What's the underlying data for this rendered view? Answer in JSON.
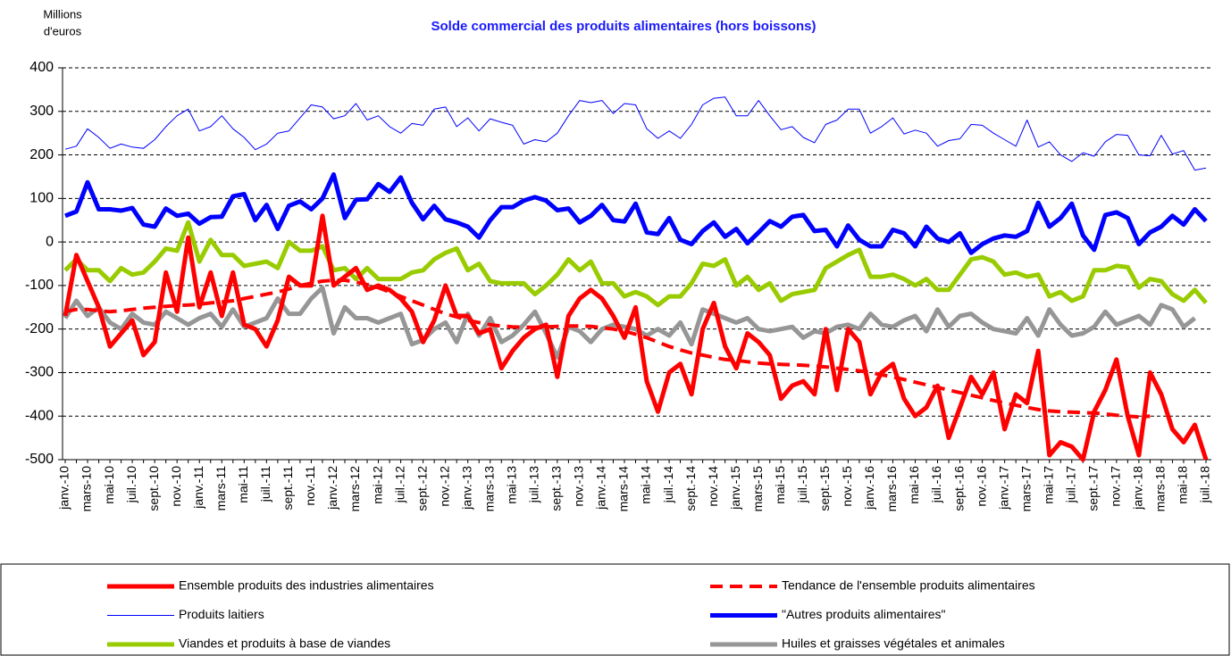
{
  "chart_data": {
    "type": "line",
    "title": "Solde commercial des produits alimentaires (hors boissons)",
    "y_label": [
      "Millions",
      "d'euros"
    ],
    "categories": [
      "janv.-10",
      null,
      "mars-10",
      null,
      "mai-10",
      null,
      "juil.-10",
      null,
      "sept.-10",
      null,
      "nov.-10",
      null,
      "janv.-11",
      null,
      "mars-11",
      null,
      "mai-11",
      null,
      "juil.-11",
      null,
      "sept.-11",
      null,
      "nov.-11",
      null,
      "janv.-12",
      null,
      "mars-12",
      null,
      "mai-12",
      null,
      "juil.-12",
      null,
      "sept.-12",
      null,
      "nov.-12",
      null,
      "janv.-13",
      null,
      "mars-13",
      null,
      "mai-13",
      null,
      "juil.-13",
      null,
      "sept.-13",
      null,
      "nov.-13",
      null,
      "janv.-14",
      null,
      "mars-14",
      null,
      "mai-14",
      null,
      "juil.-14",
      null,
      "sept.-14",
      null,
      "nov.-14",
      null,
      "janv.-15",
      null,
      "mars-15",
      null,
      "mai-15",
      null,
      "juil.-15",
      null,
      "sept.-15",
      null,
      "nov.-15",
      null,
      "janv.-16",
      null,
      "mars-16",
      null,
      "mai-16",
      null,
      "juil.-16",
      null,
      "sept.-16",
      null,
      "nov.-16",
      null,
      "janv.-17",
      null,
      "mars-17",
      null,
      "mai-17",
      null,
      "juil.-17",
      null,
      "sept.-17",
      null,
      "nov.-17",
      null,
      "janv.-18",
      null,
      "mars-18",
      null,
      "mai-18",
      null,
      "juil.-18"
    ],
    "ylim": [
      -500,
      400
    ],
    "yticks": [
      -500,
      -400,
      -300,
      -200,
      -100,
      0,
      100,
      200,
      300,
      400
    ],
    "grid": true,
    "series": [
      {
        "name": "Ensemble produits des industries alimentaires",
        "color": "#ff0000",
        "line_width": 5,
        "dashed": false,
        "values": [
          -170,
          -30,
          -90,
          -150,
          -240,
          -210,
          -180,
          -260,
          -230,
          -70,
          -160,
          10,
          -150,
          -70,
          -170,
          -70,
          -190,
          -200,
          -240,
          -180,
          -80,
          -100,
          -100,
          60,
          -100,
          -80,
          -60,
          -110,
          -100,
          -110,
          -130,
          -160,
          -230,
          -180,
          -100,
          -170,
          -170,
          -210,
          -200,
          -290,
          -250,
          -220,
          -200,
          -190,
          -310,
          -170,
          -130,
          -110,
          -130,
          -170,
          -220,
          -150,
          -320,
          -390,
          -300,
          -280,
          -350,
          -200,
          -140,
          -240,
          -290,
          -210,
          -230,
          -260,
          -360,
          -330,
          -320,
          -350,
          -200,
          -340,
          -200,
          -230,
          -350,
          -300,
          -280,
          -360,
          -400,
          -380,
          -330,
          -450,
          -380,
          -310,
          -350,
          -300,
          -430,
          -350,
          -370,
          -250,
          -490,
          -460,
          -470,
          -500,
          -390,
          -340,
          -270,
          -400,
          -490,
          -300,
          -350,
          -430,
          -460,
          -420,
          -500
        ]
      },
      {
        "name": "Tendance de l'ensemble produits alimentaires",
        "color": "#ff0000",
        "line_width": 4,
        "dashed": true,
        "values": [
          -160,
          -155,
          -155,
          -158,
          -160,
          -158,
          -155,
          -152,
          -150,
          -148,
          -146,
          -145,
          -143,
          -140,
          -138,
          -135,
          -130,
          -125,
          -120,
          -115,
          -108,
          -100,
          -95,
          -90,
          -88,
          -88,
          -92,
          -98,
          -105,
          -115,
          -125,
          -135,
          -145,
          -155,
          -165,
          -172,
          -180,
          -185,
          -190,
          -193,
          -195,
          -196,
          -196,
          -195,
          -194,
          -193,
          -193,
          -194,
          -197,
          -200,
          -205,
          -212,
          -220,
          -230,
          -240,
          -248,
          -255,
          -260,
          -265,
          -270,
          -272,
          -275,
          -278,
          -280,
          -281,
          -282,
          -283,
          -285,
          -287,
          -290,
          -293,
          -296,
          -300,
          -305,
          -310,
          -316,
          -322,
          -328,
          -334,
          -340,
          -346,
          -352,
          -358,
          -364,
          -370,
          -375,
          -380,
          -385,
          -388,
          -390,
          -391,
          -392,
          -393,
          -395,
          -398,
          -400,
          -402,
          -400,
          null,
          null,
          null,
          null,
          null
        ]
      },
      {
        "name": "Produits laitiers",
        "color": "#0000ff",
        "line_width": 1,
        "dashed": false,
        "values": [
          213,
          220,
          260,
          240,
          215,
          225,
          218,
          215,
          235,
          265,
          290,
          305,
          255,
          265,
          290,
          260,
          240,
          212,
          225,
          250,
          255,
          285,
          315,
          310,
          283,
          290,
          318,
          280,
          290,
          265,
          250,
          272,
          268,
          305,
          310,
          265,
          285,
          255,
          283,
          275,
          268,
          225,
          235,
          230,
          250,
          290,
          325,
          320,
          325,
          295,
          318,
          315,
          260,
          238,
          255,
          238,
          270,
          315,
          330,
          333,
          290,
          290,
          325,
          290,
          258,
          265,
          240,
          228,
          270,
          280,
          305,
          305,
          250,
          265,
          285,
          248,
          257,
          250,
          220,
          233,
          237,
          270,
          268,
          250,
          235,
          220,
          280,
          218,
          230,
          200,
          185,
          205,
          197,
          230,
          247,
          245,
          200,
          198,
          245,
          202,
          210,
          165,
          170
        ]
      },
      {
        "name": "\"Autres produits alimentaires\"",
        "color": "#0000ff",
        "line_width": 5,
        "dashed": false,
        "values": [
          60,
          70,
          137,
          75,
          75,
          72,
          78,
          40,
          35,
          77,
          60,
          65,
          42,
          57,
          58,
          105,
          110,
          50,
          85,
          30,
          83,
          93,
          75,
          100,
          155,
          55,
          97,
          98,
          133,
          115,
          148,
          90,
          52,
          83,
          52,
          45,
          35,
          10,
          50,
          80,
          80,
          95,
          103,
          95,
          73,
          77,
          45,
          60,
          85,
          50,
          47,
          88,
          22,
          18,
          55,
          5,
          -5,
          25,
          45,
          12,
          30,
          -3,
          22,
          48,
          35,
          58,
          62,
          25,
          28,
          -10,
          38,
          5,
          -10,
          -10,
          28,
          20,
          -10,
          35,
          8,
          0,
          20,
          -25,
          -5,
          8,
          15,
          12,
          25,
          90,
          35,
          55,
          88,
          15,
          -18,
          62,
          68,
          55,
          -5,
          22,
          35,
          60,
          40,
          75,
          48
        ]
      },
      {
        "name": "Viandes et produits à base de viandes",
        "color": "#99cc00",
        "line_width": 5,
        "dashed": false,
        "values": [
          -65,
          -40,
          -65,
          -65,
          -90,
          -60,
          -75,
          -70,
          -45,
          -15,
          -20,
          45,
          -45,
          5,
          -30,
          -30,
          -55,
          -50,
          -45,
          -60,
          0,
          -20,
          -20,
          -10,
          -65,
          -60,
          -85,
          -60,
          -85,
          -85,
          -85,
          -70,
          -65,
          -40,
          -25,
          -15,
          -65,
          -50,
          -90,
          -95,
          -95,
          -95,
          -120,
          -100,
          -75,
          -40,
          -65,
          -45,
          -95,
          -95,
          -125,
          -115,
          -125,
          -145,
          -125,
          -125,
          -95,
          -50,
          -55,
          -40,
          -100,
          -80,
          -110,
          -95,
          -135,
          -120,
          -115,
          -110,
          -60,
          -45,
          -30,
          -18,
          -80,
          -80,
          -75,
          -85,
          -100,
          -85,
          -110,
          -110,
          -75,
          -40,
          -35,
          -45,
          -75,
          -70,
          -80,
          -75,
          -125,
          -115,
          -135,
          -125,
          -65,
          -65,
          -55,
          -58,
          -105,
          -85,
          -90,
          -120,
          -135,
          -110,
          -140
        ]
      },
      {
        "name": "Huiles et graisses végétales et animales",
        "color": "#969696",
        "line_width": 5,
        "dashed": false,
        "values": [
          -175,
          -135,
          -170,
          -150,
          -185,
          -200,
          -165,
          -185,
          -190,
          -160,
          -175,
          -190,
          -175,
          -165,
          -195,
          -155,
          -195,
          -185,
          -175,
          -130,
          -165,
          -165,
          -130,
          -105,
          -210,
          -150,
          -175,
          -175,
          -185,
          -175,
          -165,
          -235,
          -225,
          -200,
          -185,
          -230,
          -165,
          -215,
          -175,
          -230,
          -215,
          -190,
          -160,
          -210,
          -265,
          -195,
          -205,
          -230,
          -200,
          -190,
          -195,
          -200,
          -215,
          -200,
          -215,
          -185,
          -235,
          -155,
          -165,
          -175,
          -185,
          -175,
          -200,
          -205,
          -200,
          -195,
          -220,
          -205,
          -210,
          -195,
          -190,
          -200,
          -165,
          -190,
          -195,
          -180,
          -170,
          -205,
          -155,
          -195,
          -170,
          -165,
          -185,
          -200,
          -205,
          -210,
          -175,
          -215,
          -155,
          -190,
          -215,
          -210,
          -195,
          -160,
          -190,
          -180,
          -170,
          -190,
          -145,
          -155,
          -195,
          -175,
          null
        ]
      }
    ]
  }
}
